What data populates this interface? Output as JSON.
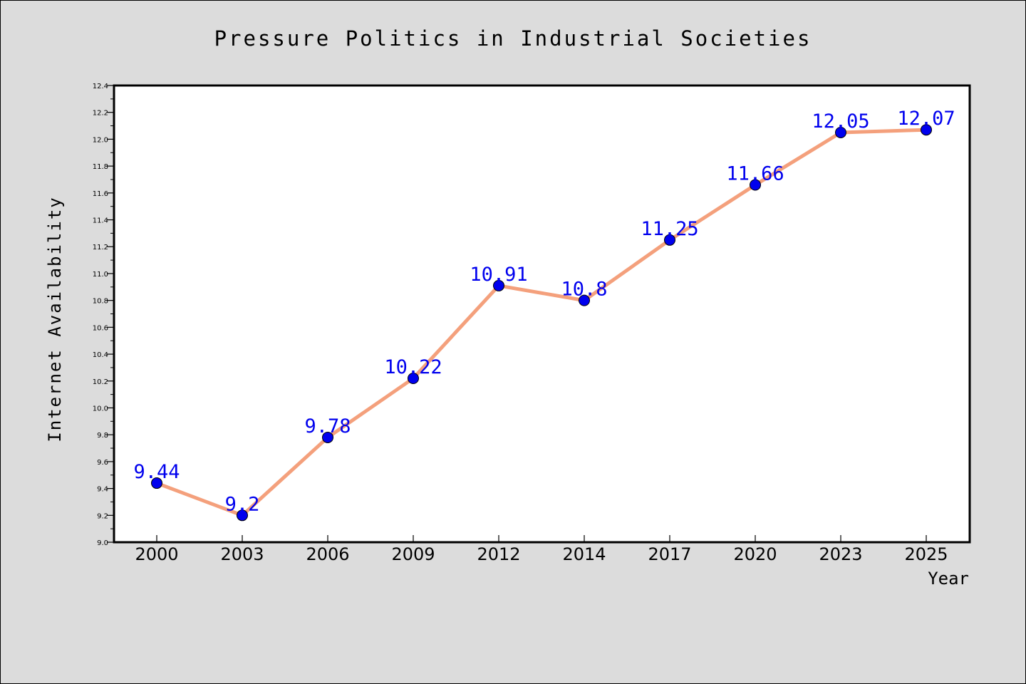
{
  "chart_data": {
    "type": "line",
    "title": "Pressure Politics in Industrial Societies",
    "xlabel": "Year",
    "ylabel": "Internet Availability",
    "categories": [
      "2000",
      "2003",
      "2006",
      "2009",
      "2012",
      "2014",
      "2017",
      "2020",
      "2023",
      "2025"
    ],
    "series": [
      {
        "values": [
          9.44,
          9.2,
          9.78,
          10.22,
          10.91,
          10.8,
          11.25,
          11.66,
          12.05,
          12.07
        ],
        "labels": [
          "9.44",
          "9.2",
          "9.78",
          "10.22",
          "10.91",
          "10.8",
          "11.25",
          "11.66",
          "12.05",
          "12.07"
        ],
        "line_color": "#f4a07c",
        "marker_color": "#0000ee",
        "label_color": "#0000ee"
      }
    ],
    "ylim": [
      9.0,
      12.4
    ],
    "yticks": [
      "9.0",
      "9.2",
      "9.4",
      "9.6",
      "9.8",
      "10.0",
      "10.2",
      "10.4",
      "10.6",
      "10.8",
      "11.0",
      "11.2",
      "11.4",
      "11.6",
      "11.8",
      "12.0",
      "12.2",
      "12.4"
    ],
    "grid": false,
    "colors": {
      "background": "#dcdcdc",
      "plot_background": "#ffffff",
      "axes": "#000000"
    }
  }
}
